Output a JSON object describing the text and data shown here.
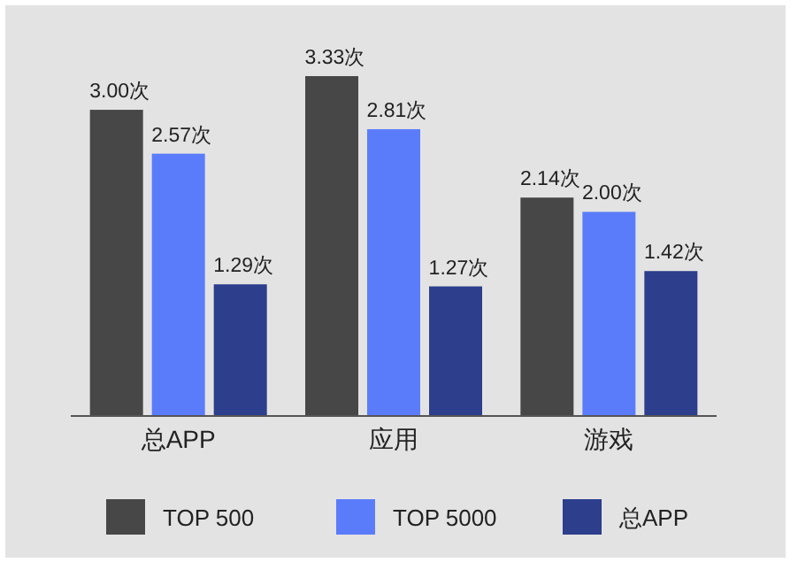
{
  "chart_data": {
    "type": "bar",
    "categories": [
      "总APP",
      "应用",
      "游戏"
    ],
    "series": [
      {
        "name": "TOP 500",
        "color": "#474747",
        "values": [
          3.0,
          3.33,
          2.14
        ],
        "value_labels": [
          "3.00次",
          "3.33次",
          "2.14次"
        ]
      },
      {
        "name": "TOP 5000",
        "color": "#5b7cfa",
        "values": [
          2.57,
          2.81,
          2.0
        ],
        "value_labels": [
          "2.57次",
          "2.81次",
          "2.00次"
        ]
      },
      {
        "name": "总APP",
        "color": "#2c3e8c",
        "values": [
          1.29,
          1.27,
          1.42
        ],
        "value_labels": [
          "1.29次",
          "1.27次",
          "1.42次"
        ]
      }
    ],
    "legend": "bottom"
  }
}
